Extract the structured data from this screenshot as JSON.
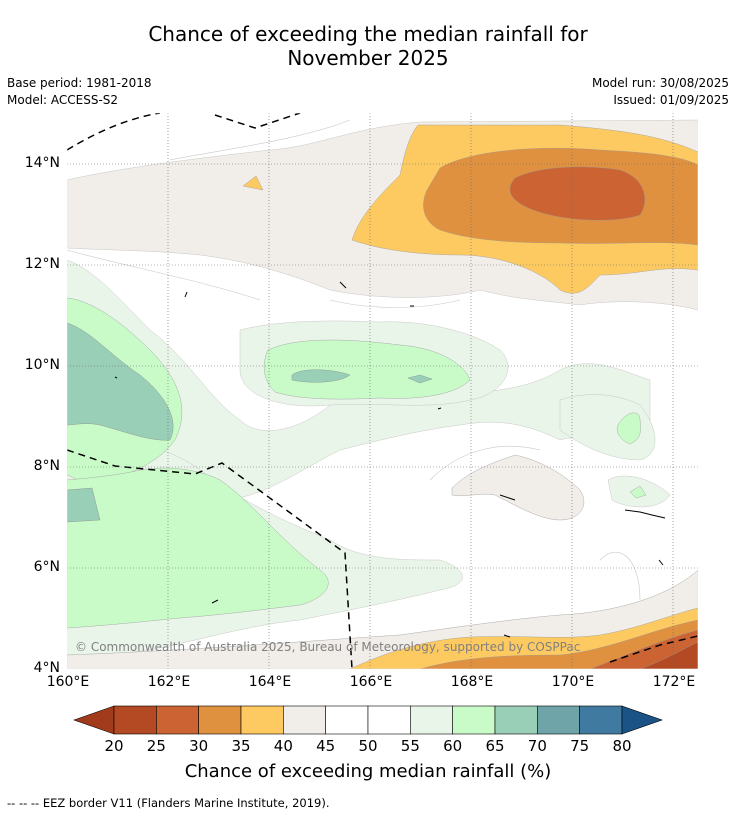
{
  "title": {
    "line1": "Chance of exceeding the median rainfall for",
    "line2": "November 2025"
  },
  "meta": {
    "base_period": "Base period: 1981-2018",
    "model": "Model: ACCESS-S2",
    "model_run": "Model run: 30/08/2025",
    "issued": "Issued: 01/09/2025"
  },
  "map": {
    "lat_labels": [
      "14°N",
      "12°N",
      "10°N",
      "8°N",
      "6°N",
      "4°N"
    ],
    "lon_labels": [
      "160°E",
      "162°E",
      "164°E",
      "166°E",
      "168°E",
      "170°E",
      "172°E"
    ],
    "copyright": "© Commonwealth of Australia 2025, Bureau of Meteorology, supported by COSPPac"
  },
  "colorbar": {
    "ticks": [
      "20",
      "25",
      "30",
      "35",
      "40",
      "45",
      "50",
      "55",
      "60",
      "65",
      "70",
      "75",
      "80"
    ],
    "colors": [
      "#a23b1c",
      "#b34a23",
      "#cc6333",
      "#e0913f",
      "#fdca62",
      "#f1ede8",
      "#ffffff",
      "#ffffff",
      "#eaf5ea",
      "#c9fbc9",
      "#9acfb7",
      "#6fa5a8",
      "#417aa0",
      "#1b5386"
    ],
    "label": "Chance of exceeding median rainfall (%)"
  },
  "footnote": "--  --  -- EEZ border V11 (Flanders Marine Institute, 2019)."
}
